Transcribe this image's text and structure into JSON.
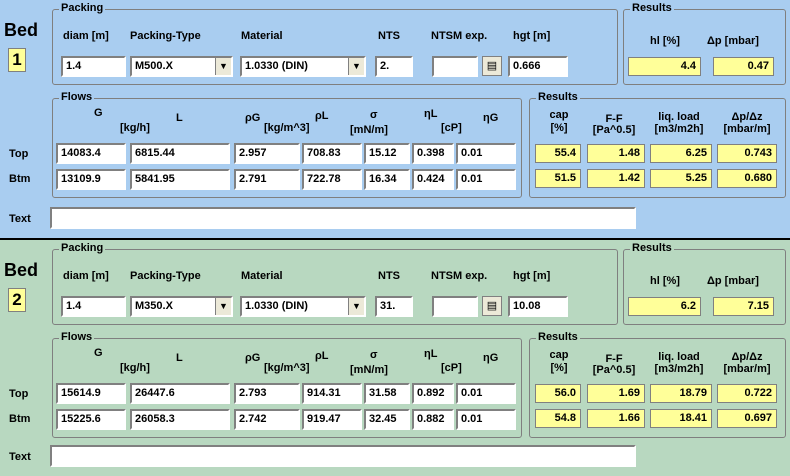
{
  "beds": [
    {
      "label": "Bed",
      "number": "1",
      "packing": {
        "title": "Packing",
        "diam_label": "diam [m]",
        "type_label": "Packing-Type",
        "material_label": "Material",
        "nts_label": "NTS",
        "ntsm_label": "NTSM exp.",
        "hgt_label": "hgt [m]",
        "diam": "1.4",
        "type": "M500.X",
        "material": "1.0330 (DIN)",
        "nts": "2.",
        "ntsm": "",
        "hgt": "0.666"
      },
      "results_top": {
        "title": "Results",
        "hl_label": "hl [%]",
        "dp_label": "Δp [mbar]",
        "hl": "4.4",
        "dp": "0.47"
      },
      "flows": {
        "title": "Flows",
        "h_G": "G",
        "h_L": "L",
        "h_kgh": "[kg/h]",
        "h_rhoG": "ρG",
        "h_rhoL": "ρL",
        "h_kgm3": "[kg/m^3]",
        "h_sigma": "σ",
        "h_mNm": "[mN/m]",
        "h_etaL": "ηL",
        "h_etaG": "ηG",
        "h_cP": "[cP]",
        "row_top": "Top",
        "row_btm": "Btm",
        "top": [
          "14083.4",
          "6815.44",
          "2.957",
          "708.83",
          "15.12",
          "0.398",
          "0.01"
        ],
        "btm": [
          "13109.9",
          "5841.95",
          "2.791",
          "722.78",
          "16.34",
          "0.424",
          "0.01"
        ]
      },
      "results_flow": {
        "title": "Results",
        "h_cap": "cap",
        "h_cap_unit": "[%]",
        "h_ff": "F-F",
        "h_ff_unit": "[Pa^0.5]",
        "h_liq": "liq. load",
        "h_liq_unit": "[m3/m2h]",
        "h_dpdz": "Δp/Δz",
        "h_dpdz_unit": "[mbar/m]",
        "top": [
          "55.4",
          "1.48",
          "6.25",
          "0.743"
        ],
        "btm": [
          "51.5",
          "1.42",
          "5.25",
          "0.680"
        ]
      },
      "text_label": "Text",
      "text_value": ""
    },
    {
      "label": "Bed",
      "number": "2",
      "packing": {
        "title": "Packing",
        "diam_label": "diam [m]",
        "type_label": "Packing-Type",
        "material_label": "Material",
        "nts_label": "NTS",
        "ntsm_label": "NTSM exp.",
        "hgt_label": "hgt [m]",
        "diam": "1.4",
        "type": "M350.X",
        "material": "1.0330 (DIN)",
        "nts": "31.",
        "ntsm": "",
        "hgt": "10.08"
      },
      "results_top": {
        "title": "Results",
        "hl_label": "hl [%]",
        "dp_label": "Δp [mbar]",
        "hl": "6.2",
        "dp": "7.15"
      },
      "flows": {
        "title": "Flows",
        "h_G": "G",
        "h_L": "L",
        "h_kgh": "[kg/h]",
        "h_rhoG": "ρG",
        "h_rhoL": "ρL",
        "h_kgm3": "[kg/m^3]",
        "h_sigma": "σ",
        "h_mNm": "[mN/m]",
        "h_etaL": "ηL",
        "h_etaG": "ηG",
        "h_cP": "[cP]",
        "row_top": "Top",
        "row_btm": "Btm",
        "top": [
          "15614.9",
          "26447.6",
          "2.793",
          "914.31",
          "31.58",
          "0.892",
          "0.01"
        ],
        "btm": [
          "15225.6",
          "26058.3",
          "2.742",
          "919.47",
          "32.45",
          "0.882",
          "0.01"
        ]
      },
      "results_flow": {
        "title": "Results",
        "h_cap": "cap",
        "h_cap_unit": "[%]",
        "h_ff": "F-F",
        "h_ff_unit": "[Pa^0.5]",
        "h_liq": "liq. load",
        "h_liq_unit": "[m3/m2h]",
        "h_dpdz": "Δp/Δz",
        "h_dpdz_unit": "[mbar/m]",
        "top": [
          "56.0",
          "1.69",
          "18.79",
          "0.722"
        ],
        "btm": [
          "54.8",
          "1.66",
          "18.41",
          "0.697"
        ]
      },
      "text_label": "Text",
      "text_value": ""
    }
  ],
  "icons": {
    "ntsm_button": "document-icon",
    "dropdown": "chevron-down-icon"
  },
  "colors": {
    "bed1_bg": "#a9cdf0",
    "bed2_bg": "#b8d8c0",
    "result_bg": "#ffff99"
  }
}
